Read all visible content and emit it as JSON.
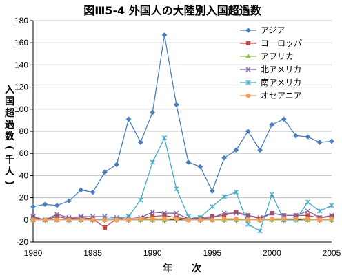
{
  "chart_data": {
    "type": "line",
    "title": "図Ⅲ5-4  外国人の大陸別入国超過数",
    "xlabel": "年　　次",
    "ylabel": "入国超過数(千人)",
    "x": [
      1980,
      1981,
      1982,
      1983,
      1984,
      1985,
      1986,
      1987,
      1988,
      1989,
      1990,
      1991,
      1992,
      1993,
      1994,
      1995,
      1996,
      1997,
      1998,
      1999,
      2000,
      2001,
      2002,
      2003,
      2004,
      2005
    ],
    "xlim": [
      1980,
      2005
    ],
    "ylim": [
      -20,
      180
    ],
    "xticks": [
      "1980",
      "1985",
      "1990",
      "1995",
      "2000",
      "2005"
    ],
    "yticks": [
      "-20",
      "0",
      "20",
      "40",
      "60",
      "80",
      "100",
      "120",
      "140",
      "160",
      "180"
    ],
    "grid": "horizontal",
    "legend_position": "top-right",
    "series": [
      {
        "name": "アジア",
        "color": "#4a7ebb",
        "marker": "diamond",
        "values": [
          12,
          14,
          13,
          17,
          27,
          25,
          43,
          50,
          91,
          70,
          97,
          167,
          104,
          52,
          48,
          26,
          56,
          63,
          80,
          63,
          86,
          91,
          76,
          75,
          70,
          71
        ]
      },
      {
        "name": "ヨーロッパ",
        "color": "#be4b48",
        "marker": "square",
        "values": [
          2,
          0,
          3,
          1,
          2,
          1,
          -7,
          1,
          1,
          1,
          3,
          4,
          2,
          1,
          2,
          3,
          4,
          7,
          4,
          1,
          6,
          4,
          4,
          4,
          2,
          3
        ]
      },
      {
        "name": "アフリカ",
        "color": "#98b954",
        "marker": "triangle",
        "values": [
          0,
          0,
          0,
          0,
          0,
          0,
          0,
          0,
          0,
          0,
          0,
          0,
          1,
          0,
          0,
          0,
          0,
          0,
          0,
          0,
          0,
          0,
          1,
          0,
          0,
          0
        ]
      },
      {
        "name": "北アメリカ",
        "color": "#7d60a0",
        "marker": "x",
        "values": [
          3,
          0,
          5,
          2,
          3,
          3,
          3,
          2,
          3,
          2,
          7,
          6,
          6,
          1,
          1,
          2,
          6,
          6,
          4,
          2,
          6,
          4,
          4,
          8,
          2,
          4
        ]
      },
      {
        "name": "南アメリカ",
        "color": "#46aac5",
        "marker": "star",
        "values": [
          0,
          0,
          0,
          0,
          0,
          0,
          1,
          1,
          3,
          18,
          52,
          74,
          28,
          3,
          2,
          12,
          21,
          25,
          -4,
          -10,
          23,
          0,
          0,
          16,
          8,
          13
        ]
      },
      {
        "name": "オセアニア",
        "color": "#f59d56",
        "marker": "circle",
        "values": [
          0,
          0,
          0,
          0,
          0,
          0,
          0,
          0,
          0,
          1,
          1,
          1,
          1,
          0,
          0,
          0,
          1,
          1,
          0,
          0,
          1,
          1,
          1,
          1,
          0,
          1
        ]
      }
    ]
  }
}
